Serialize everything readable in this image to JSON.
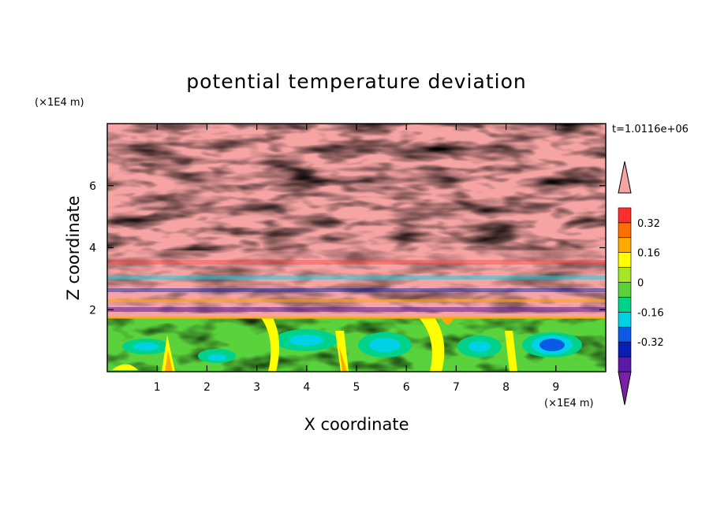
{
  "chart_data": {
    "type": "heatmap",
    "title": "potential temperature deviation",
    "xlabel": "X coordinate",
    "ylabel": "Z coordinate",
    "x_unit": "(×1E4 m)",
    "z_unit": "(×1E4 m)",
    "time_label": "t=1.0116e+06",
    "xlim": [
      0,
      10
    ],
    "ylim": [
      0,
      8
    ],
    "x_ticks": [
      "1",
      "2",
      "3",
      "4",
      "5",
      "6",
      "7",
      "8",
      "9"
    ],
    "y_ticks": [
      "2",
      "4",
      "6"
    ],
    "grid": false,
    "legend": "right",
    "colorbar": {
      "levels": [
        -0.48,
        -0.4,
        -0.32,
        -0.24,
        -0.16,
        -0.08,
        0,
        0.08,
        0.16,
        0.24,
        0.32,
        0.4,
        0.48
      ],
      "labels": [
        "0.32",
        "0.16",
        "0",
        "-0.16",
        "-0.32"
      ],
      "label_values": [
        0.32,
        0.16,
        0,
        -0.16,
        -0.32
      ],
      "colors": [
        "#7a1fa8",
        "#5a1aa8",
        "#0a1eb4",
        "#0a5ae6",
        "#00d2e6",
        "#00d28c",
        "#5ad23c",
        "#a8e628",
        "#ffff00",
        "#ffaa00",
        "#ff6e00",
        "#ff2d2d",
        "#f5a3a3"
      ],
      "extend": "both"
    }
  }
}
